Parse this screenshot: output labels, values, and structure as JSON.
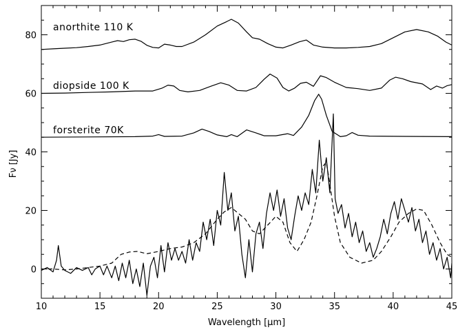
{
  "chart_data": {
    "type": "line",
    "xlabel": "Wavelength [μm]",
    "ylabel": "Fν [Jy]",
    "xlim": [
      10,
      45
    ],
    "ylim": [
      -10,
      90
    ],
    "xticks": [
      10,
      15,
      20,
      25,
      30,
      35,
      40,
      45
    ],
    "yticks": [
      0,
      20,
      40,
      60,
      80
    ],
    "grid": false,
    "legend": "none",
    "annotations": [
      {
        "text": "anorthite 110 K",
        "x": 11.0,
        "y": 81.5
      },
      {
        "text": "diopside 100 K",
        "x": 11.0,
        "y": 61.5
      },
      {
        "text": "forsterite 70K",
        "x": 11.0,
        "y": 46.3
      }
    ],
    "series": [
      {
        "style": "solid",
        "points": [
          [
            10,
            75
          ],
          [
            11,
            75.2
          ],
          [
            12,
            75.4
          ],
          [
            13,
            75.6
          ],
          [
            14,
            76
          ],
          [
            15,
            76.5
          ],
          [
            16,
            77.5
          ],
          [
            16.5,
            78
          ],
          [
            17,
            77.7
          ],
          [
            17.5,
            78.3
          ],
          [
            18,
            78.5
          ],
          [
            18.5,
            77.8
          ],
          [
            19,
            76.4
          ],
          [
            19.5,
            75.7
          ],
          [
            20,
            75.5
          ],
          [
            20.5,
            76.8
          ],
          [
            21,
            76.5
          ],
          [
            21.5,
            76
          ],
          [
            22,
            76
          ],
          [
            23,
            77.5
          ],
          [
            24,
            80
          ],
          [
            25,
            83
          ],
          [
            25.8,
            84.5
          ],
          [
            26.2,
            85.3
          ],
          [
            26.8,
            84
          ],
          [
            27.5,
            81
          ],
          [
            28,
            79
          ],
          [
            28.6,
            78.5
          ],
          [
            29.3,
            77
          ],
          [
            30,
            75.8
          ],
          [
            30.6,
            75.5
          ],
          [
            31.3,
            76.5
          ],
          [
            32,
            77.6
          ],
          [
            32.6,
            78.2
          ],
          [
            33.2,
            76.5
          ],
          [
            34,
            75.8
          ],
          [
            35,
            75.5
          ],
          [
            36,
            75.5
          ],
          [
            37,
            75.7
          ],
          [
            38,
            76
          ],
          [
            39,
            77
          ],
          [
            40,
            79
          ],
          [
            41,
            81
          ],
          [
            42,
            81.8
          ],
          [
            43,
            81
          ],
          [
            43.8,
            79.5
          ],
          [
            44.5,
            77.5
          ],
          [
            45,
            76.5
          ]
        ]
      },
      {
        "style": "solid",
        "points": [
          [
            10,
            60
          ],
          [
            12,
            60.1
          ],
          [
            14,
            60.3
          ],
          [
            16,
            60.5
          ],
          [
            18,
            60.8
          ],
          [
            19.5,
            60.8
          ],
          [
            20.3,
            61.8
          ],
          [
            20.8,
            62.8
          ],
          [
            21.3,
            62.5
          ],
          [
            21.8,
            61
          ],
          [
            22.5,
            60.5
          ],
          [
            23.5,
            61
          ],
          [
            24.5,
            62.5
          ],
          [
            25.3,
            63.6
          ],
          [
            26,
            62.8
          ],
          [
            26.7,
            61
          ],
          [
            27.5,
            60.8
          ],
          [
            28.3,
            62
          ],
          [
            29,
            64.8
          ],
          [
            29.5,
            66.6
          ],
          [
            30.1,
            65.2
          ],
          [
            30.6,
            62
          ],
          [
            31.1,
            60.8
          ],
          [
            31.6,
            61.8
          ],
          [
            32.1,
            63.4
          ],
          [
            32.6,
            63.8
          ],
          [
            33.2,
            62.4
          ],
          [
            33.8,
            66
          ],
          [
            34.3,
            65.4
          ],
          [
            35,
            63.8
          ],
          [
            36,
            62
          ],
          [
            37,
            61.6
          ],
          [
            38,
            61
          ],
          [
            39,
            61.8
          ],
          [
            39.7,
            64.5
          ],
          [
            40.2,
            65.5
          ],
          [
            40.8,
            65
          ],
          [
            41.5,
            64
          ],
          [
            42.5,
            63.2
          ],
          [
            43.2,
            61.3
          ],
          [
            43.7,
            62.5
          ],
          [
            44.2,
            61.8
          ],
          [
            44.6,
            62.6
          ],
          [
            45,
            63
          ]
        ]
      },
      {
        "style": "solid",
        "points": [
          [
            10,
            45
          ],
          [
            14,
            45.1
          ],
          [
            18,
            45.2
          ],
          [
            19.5,
            45.4
          ],
          [
            20,
            45.9
          ],
          [
            20.5,
            45.3
          ],
          [
            22,
            45.4
          ],
          [
            23,
            46.5
          ],
          [
            23.7,
            47.8
          ],
          [
            24.3,
            47
          ],
          [
            25,
            45.8
          ],
          [
            25.8,
            45.2
          ],
          [
            26.2,
            45.9
          ],
          [
            26.7,
            45.2
          ],
          [
            27.5,
            47.5
          ],
          [
            28.3,
            46.5
          ],
          [
            29,
            45.5
          ],
          [
            30,
            45.5
          ],
          [
            31,
            46.2
          ],
          [
            31.5,
            45.6
          ],
          [
            32.2,
            48.5
          ],
          [
            32.8,
            52.5
          ],
          [
            33.3,
            57.5
          ],
          [
            33.65,
            59.7
          ],
          [
            33.9,
            58
          ],
          [
            34.3,
            52.5
          ],
          [
            34.8,
            47
          ],
          [
            35.5,
            45.2
          ],
          [
            36,
            45.5
          ],
          [
            36.5,
            46.6
          ],
          [
            37,
            45.7
          ],
          [
            38,
            45.4
          ],
          [
            41,
            45.3
          ],
          [
            45,
            45.2
          ]
        ]
      },
      {
        "style": "dashed",
        "points": [
          [
            10,
            0
          ],
          [
            11,
            0
          ],
          [
            12,
            -0.3
          ],
          [
            13,
            0
          ],
          [
            14,
            0.5
          ],
          [
            15,
            1
          ],
          [
            16,
            2
          ],
          [
            16.8,
            5
          ],
          [
            17.5,
            5.8
          ],
          [
            18.2,
            6
          ],
          [
            19,
            5.2
          ],
          [
            20,
            6
          ],
          [
            21,
            7
          ],
          [
            22,
            7.5
          ],
          [
            23,
            9
          ],
          [
            24,
            12
          ],
          [
            25,
            17
          ],
          [
            25.6,
            19.5
          ],
          [
            26.2,
            21
          ],
          [
            26.8,
            19
          ],
          [
            27.4,
            17
          ],
          [
            28,
            13
          ],
          [
            28.6,
            12
          ],
          [
            29.3,
            15
          ],
          [
            30,
            18
          ],
          [
            30.6,
            16
          ],
          [
            31.2,
            9
          ],
          [
            31.8,
            6
          ],
          [
            32.4,
            10
          ],
          [
            33,
            16
          ],
          [
            33.5,
            25
          ],
          [
            34,
            35
          ],
          [
            34.3,
            36.5
          ],
          [
            34.6,
            29
          ],
          [
            35,
            18
          ],
          [
            35.5,
            9
          ],
          [
            36.3,
            4
          ],
          [
            37.3,
            2
          ],
          [
            38.3,
            3
          ],
          [
            39,
            6
          ],
          [
            39.8,
            11
          ],
          [
            40.5,
            16
          ],
          [
            41.3,
            19
          ],
          [
            42,
            20.5
          ],
          [
            42.6,
            20
          ],
          [
            43.3,
            15
          ],
          [
            44,
            9
          ],
          [
            44.6,
            5
          ],
          [
            45,
            4
          ]
        ]
      },
      {
        "style": "solid",
        "points": [
          [
            10,
            -0.5
          ],
          [
            10.5,
            0.5
          ],
          [
            11,
            -1
          ],
          [
            11.3,
            3
          ],
          [
            11.45,
            8
          ],
          [
            11.7,
            1
          ],
          [
            12,
            -0.5
          ],
          [
            12.5,
            -1.5
          ],
          [
            13,
            0.5
          ],
          [
            13.5,
            -0.5
          ],
          [
            14,
            0.5
          ],
          [
            14.3,
            -2
          ],
          [
            14.6,
            0
          ],
          [
            15,
            1
          ],
          [
            15.3,
            -2
          ],
          [
            15.6,
            1
          ],
          [
            16,
            -3
          ],
          [
            16.3,
            1
          ],
          [
            16.6,
            -4
          ],
          [
            16.9,
            2
          ],
          [
            17.2,
            -3
          ],
          [
            17.5,
            3
          ],
          [
            17.8,
            -5
          ],
          [
            18.1,
            0
          ],
          [
            18.4,
            -6
          ],
          [
            18.7,
            2
          ],
          [
            19,
            -9
          ],
          [
            19.3,
            1
          ],
          [
            19.6,
            4
          ],
          [
            19.9,
            -3
          ],
          [
            20.2,
            8
          ],
          [
            20.5,
            -1
          ],
          [
            20.8,
            9
          ],
          [
            21.1,
            3
          ],
          [
            21.4,
            7
          ],
          [
            21.7,
            3
          ],
          [
            22,
            6
          ],
          [
            22.3,
            2
          ],
          [
            22.6,
            10
          ],
          [
            22.9,
            3
          ],
          [
            23.2,
            9
          ],
          [
            23.5,
            6
          ],
          [
            23.8,
            16
          ],
          [
            24.1,
            10
          ],
          [
            24.4,
            17
          ],
          [
            24.7,
            8
          ],
          [
            25,
            20
          ],
          [
            25.3,
            15
          ],
          [
            25.6,
            33
          ],
          [
            25.9,
            20
          ],
          [
            26.2,
            26
          ],
          [
            26.5,
            13
          ],
          [
            26.8,
            18
          ],
          [
            27.1,
            5
          ],
          [
            27.4,
            -3
          ],
          [
            27.7,
            10
          ],
          [
            28,
            -1
          ],
          [
            28.3,
            12
          ],
          [
            28.6,
            16
          ],
          [
            28.9,
            7
          ],
          [
            29.2,
            19
          ],
          [
            29.5,
            26
          ],
          [
            29.8,
            20
          ],
          [
            30.1,
            27
          ],
          [
            30.4,
            18
          ],
          [
            30.7,
            24
          ],
          [
            31,
            14
          ],
          [
            31.3,
            10
          ],
          [
            31.6,
            18
          ],
          [
            31.9,
            25
          ],
          [
            32.2,
            20
          ],
          [
            32.5,
            26
          ],
          [
            32.8,
            22
          ],
          [
            33.1,
            34
          ],
          [
            33.4,
            26
          ],
          [
            33.7,
            44
          ],
          [
            34,
            30
          ],
          [
            34.3,
            38
          ],
          [
            34.6,
            26
          ],
          [
            34.9,
            53
          ],
          [
            35.05,
            24
          ],
          [
            35.3,
            19
          ],
          [
            35.6,
            22
          ],
          [
            35.9,
            14
          ],
          [
            36.2,
            19
          ],
          [
            36.5,
            11
          ],
          [
            36.8,
            16
          ],
          [
            37.1,
            9
          ],
          [
            37.4,
            13
          ],
          [
            37.7,
            6
          ],
          [
            38,
            9
          ],
          [
            38.3,
            4
          ],
          [
            38.6,
            7
          ],
          [
            38.9,
            11
          ],
          [
            39.2,
            17
          ],
          [
            39.5,
            12
          ],
          [
            39.8,
            19
          ],
          [
            40.1,
            23
          ],
          [
            40.4,
            17
          ],
          [
            40.7,
            24
          ],
          [
            41,
            20
          ],
          [
            41.3,
            16
          ],
          [
            41.6,
            21
          ],
          [
            41.9,
            13
          ],
          [
            42.2,
            17
          ],
          [
            42.5,
            9
          ],
          [
            42.8,
            13
          ],
          [
            43.1,
            5
          ],
          [
            43.4,
            9
          ],
          [
            43.7,
            3
          ],
          [
            44,
            7
          ],
          [
            44.3,
            0
          ],
          [
            44.6,
            4
          ],
          [
            44.9,
            -3
          ],
          [
            45,
            2
          ]
        ]
      }
    ]
  }
}
